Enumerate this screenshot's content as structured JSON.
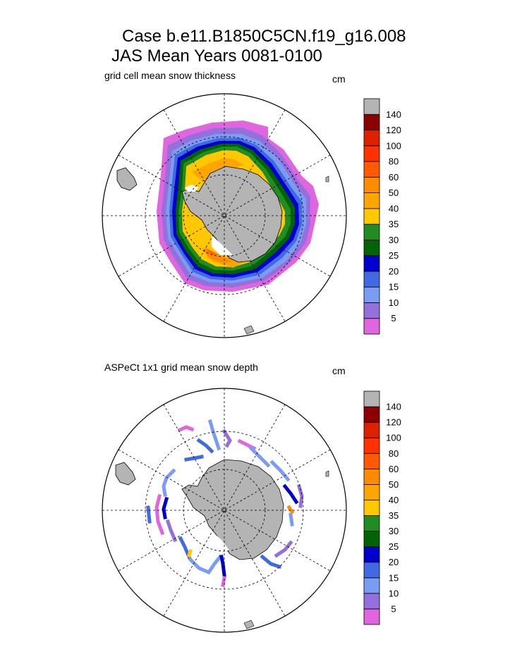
{
  "title": {
    "line1": "Case b.e11.B1850C5CN.f19_g16.008",
    "line2": "JAS Mean   Years 0081-0100"
  },
  "panels": [
    {
      "id": "model",
      "left_title": "grid cell mean snow thickness",
      "units": "cm"
    },
    {
      "id": "obs",
      "left_title": "ASPeCt 1x1 grid mean snow depth",
      "units": "cm"
    }
  ],
  "colorbar": {
    "levels": [
      "5",
      "10",
      "15",
      "20",
      "25",
      "30",
      "35",
      "40",
      "50",
      "60",
      "80",
      "100",
      "120",
      "140"
    ],
    "colors": [
      "#e066e0",
      "#9370db",
      "#7b9cf0",
      "#4169e1",
      "#0000cd",
      "#006400",
      "#228b22",
      "#ffc800",
      "#ffa500",
      "#ff8c00",
      "#ff5a00",
      "#ff3200",
      "#dd2200",
      "#8b0000",
      "#b4b4b4"
    ]
  },
  "colors": {
    "land": "#b4b4b4",
    "background": "#ffffff"
  }
}
